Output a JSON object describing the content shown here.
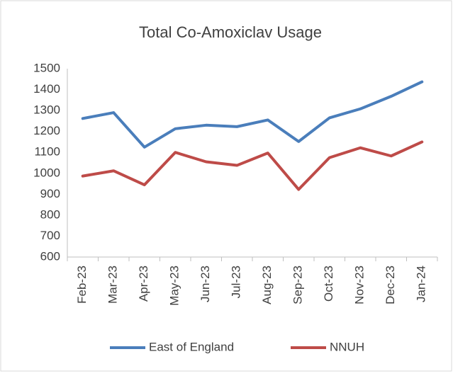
{
  "chart_data": {
    "type": "line",
    "title": "Total Co-Amoxiclav Usage",
    "categories": [
      "Feb-23",
      "Mar-23",
      "Apr-23",
      "May-23",
      "Jun-23",
      "Jul-23",
      "Aug-23",
      "Sep-23",
      "Oct-23",
      "Nov-23",
      "Dec-23",
      "Jan-24"
    ],
    "series": [
      {
        "name": "East of England",
        "color": "#4a7ebb",
        "values": [
          1262,
          1290,
          1125,
          1213,
          1230,
          1223,
          1255,
          1152,
          1265,
          1308,
          1368,
          1437
        ]
      },
      {
        "name": "NNUH",
        "color": "#be4b48",
        "values": [
          987,
          1012,
          945,
          1100,
          1055,
          1038,
          1097,
          923,
          1075,
          1122,
          1083,
          1150
        ]
      }
    ],
    "ylim": [
      600,
      1500
    ],
    "yticks": [
      600,
      700,
      800,
      900,
      1000,
      1100,
      1200,
      1300,
      1400,
      1500
    ],
    "grid": false,
    "legend": "bottom"
  }
}
